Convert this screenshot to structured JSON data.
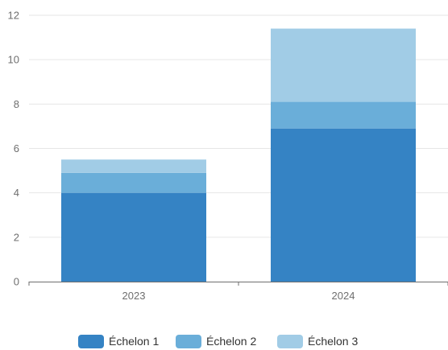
{
  "chart_data": {
    "type": "bar",
    "stacked": true,
    "categories": [
      "2023",
      "2024"
    ],
    "series": [
      {
        "name": "Échelon 1",
        "values": [
          4.0,
          6.9
        ],
        "color": "#3583c4"
      },
      {
        "name": "Échelon 2",
        "values": [
          0.9,
          1.2
        ],
        "color": "#6aaed9"
      },
      {
        "name": "Échelon 3",
        "values": [
          0.6,
          3.3
        ],
        "color": "#a1cce6"
      }
    ],
    "y_ticks": [
      "0",
      "2",
      "4",
      "6",
      "8",
      "10",
      "12"
    ],
    "ylim": [
      0,
      12
    ],
    "grid": true,
    "legend_position": "bottom-center",
    "title": "",
    "xlabel": "",
    "ylabel": ""
  }
}
